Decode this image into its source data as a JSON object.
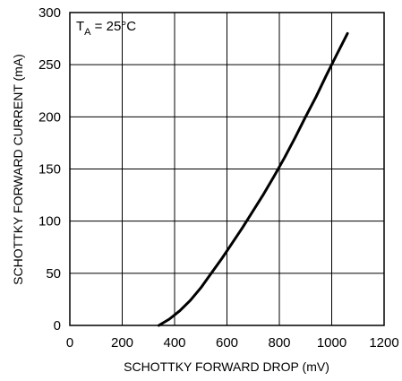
{
  "chart_data": {
    "type": "line",
    "xlabel": "SCHOTTKY FORWARD DROP (mV)",
    "ylabel": "SCHOTTKY FORWARD CURRENT (mA)",
    "xlim": [
      0,
      1200
    ],
    "ylim": [
      0,
      300
    ],
    "xticks": [
      0,
      200,
      400,
      600,
      800,
      1000,
      1200
    ],
    "yticks": [
      0,
      50,
      100,
      150,
      200,
      250,
      300
    ],
    "grid": true,
    "annotation": {
      "main": "T",
      "sub": "A",
      "rest": " = 25°C"
    },
    "series": [
      {
        "x": [
          340,
          380,
          420,
          460,
          500,
          540,
          580,
          620,
          660,
          700,
          740,
          780,
          820,
          860,
          900,
          940,
          980,
          1020,
          1060
        ],
        "y": [
          0,
          6,
          14,
          24,
          36,
          50,
          64,
          79,
          94,
          110,
          126,
          143,
          161,
          180,
          200,
          219,
          240,
          260,
          280
        ]
      }
    ]
  }
}
